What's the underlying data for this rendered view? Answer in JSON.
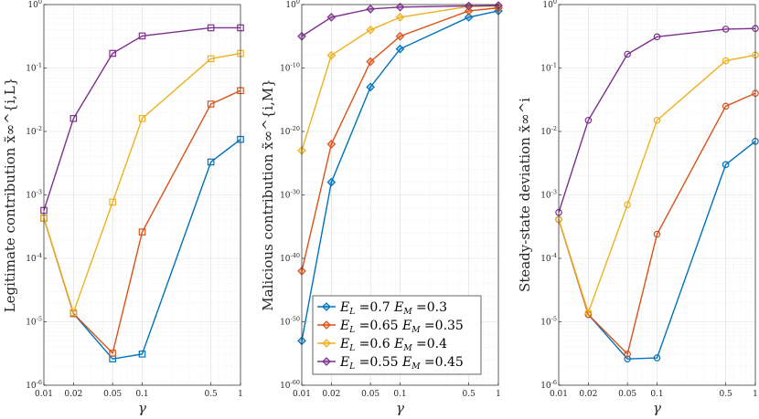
{
  "figure": {
    "series_names": [
      "E_L=0.7 E_M=0.3",
      "E_L=0.65 E_M=0.35",
      "E_L=0.6 E_M=0.4",
      "E_L=0.55 E_M=0.45"
    ],
    "colors": [
      "#0072BD",
      "#D95319",
      "#EDB120",
      "#7E2F8E"
    ],
    "legend": {
      "placement": "bottom-right of middle panel",
      "entries": [
        {
          "E_L": "0.7",
          "E_M": "0.3"
        },
        {
          "E_L": "0.65",
          "E_M": "0.35"
        },
        {
          "E_L": "0.6",
          "E_M": "0.4"
        },
        {
          "E_L": "0.55",
          "E_M": "0.45"
        }
      ]
    }
  },
  "chart_data": [
    {
      "type": "line",
      "panel": "left",
      "marker": "square",
      "title": "",
      "xlabel": "γ",
      "ylabel": "Legitimate contribution x̃∞^{i,L}",
      "xscale": "log",
      "yscale": "log",
      "xlim": [
        0.01,
        1
      ],
      "ylim": [
        1e-06,
        1
      ],
      "xticks": [
        0.01,
        0.02,
        0.05,
        0.1,
        0.5,
        1
      ],
      "xtick_labels": [
        "0.01",
        "0.02",
        "0.05",
        "0.1",
        "0.5",
        "1"
      ],
      "yticks": [
        1e-06,
        1e-05,
        0.0001,
        0.001,
        0.01,
        0.1,
        1
      ],
      "ytick_labels": [
        {
          "base": "10",
          "exp": "-6"
        },
        {
          "base": "10",
          "exp": "-5"
        },
        {
          "base": "10",
          "exp": "-4"
        },
        {
          "base": "10",
          "exp": "-3"
        },
        {
          "base": "10",
          "exp": "-2"
        },
        {
          "base": "10",
          "exp": "-1"
        },
        {
          "base": "10",
          "exp": "0"
        }
      ],
      "x": [
        0.01,
        0.02,
        0.05,
        0.1,
        0.5,
        1
      ],
      "grid": true,
      "series": [
        {
          "name": "E_L=0.7 E_M=0.3",
          "values": [
            0.00043,
            1.35e-05,
            2.6e-06,
            3.1e-06,
            0.0033,
            0.0075
          ]
        },
        {
          "name": "E_L=0.65 E_M=0.35",
          "values": [
            0.00043,
            1.35e-05,
            3.2e-06,
            0.00026,
            0.027,
            0.044
          ]
        },
        {
          "name": "E_L=0.6 E_M=0.4",
          "values": [
            0.00043,
            1.4e-05,
            0.00077,
            0.016,
            0.14,
            0.17
          ]
        },
        {
          "name": "E_L=0.55 E_M=0.45",
          "values": [
            0.00057,
            0.016,
            0.17,
            0.32,
            0.43,
            0.43
          ]
        }
      ]
    },
    {
      "type": "line",
      "panel": "middle",
      "marker": "diamond",
      "title": "",
      "xlabel": "γ",
      "ylabel": "Malicious contribution x̃∞^{i,M}",
      "xscale": "log",
      "yscale": "log",
      "xlim": [
        0.01,
        1
      ],
      "ylim": [
        1e-60,
        1
      ],
      "xticks": [
        0.01,
        0.02,
        0.05,
        0.1,
        0.5,
        1
      ],
      "xtick_labels": [
        "0.01",
        "0.02",
        "0.05",
        "0.1",
        "0.5",
        "1"
      ],
      "yticks": [
        1e-60,
        1e-50,
        1e-40,
        1e-30,
        1e-20,
        1e-10,
        1
      ],
      "ytick_labels": [
        {
          "base": "10",
          "exp": "-60"
        },
        {
          "base": "10",
          "exp": "-50"
        },
        {
          "base": "10",
          "exp": "-40"
        },
        {
          "base": "10",
          "exp": "-30"
        },
        {
          "base": "10",
          "exp": "-20"
        },
        {
          "base": "10",
          "exp": "-10"
        },
        {
          "base": "10",
          "exp": "0"
        }
      ],
      "x": [
        0.01,
        0.02,
        0.05,
        0.1,
        0.5,
        1
      ],
      "grid": true,
      "series": [
        {
          "name": "E_L=0.7 E_M=0.3",
          "values": [
            1e-53,
            1e-28,
            1e-13,
            1e-07,
            0.01,
            0.1
          ]
        },
        {
          "name": "E_L=0.65 E_M=0.35",
          "values": [
            1e-42,
            1e-22,
            1e-09,
            1e-05,
            0.1,
            0.3
          ]
        },
        {
          "name": "E_L=0.6 E_M=0.4",
          "values": [
            1e-23,
            1e-08,
            0.0001,
            0.01,
            0.5,
            0.6
          ]
        },
        {
          "name": "E_L=0.55 E_M=0.45",
          "values": [
            1e-05,
            0.01,
            0.2,
            0.4,
            0.6,
            0.7
          ]
        }
      ]
    },
    {
      "type": "line",
      "panel": "right",
      "marker": "circle",
      "title": "",
      "xlabel": "γ",
      "ylabel": "Steady-state deviation x̃∞^i",
      "xscale": "log",
      "yscale": "log",
      "xlim": [
        0.01,
        1
      ],
      "ylim": [
        1e-06,
        1
      ],
      "xticks": [
        0.01,
        0.02,
        0.05,
        0.1,
        0.5,
        1
      ],
      "xtick_labels": [
        "0.01",
        "0.02",
        "0.05",
        "0.1",
        "0.5",
        "1"
      ],
      "yticks": [
        1e-06,
        1e-05,
        0.0001,
        0.001,
        0.01,
        0.1,
        1
      ],
      "ytick_labels": [
        {
          "base": "10",
          "exp": "-6"
        },
        {
          "base": "10",
          "exp": "-5"
        },
        {
          "base": "10",
          "exp": "-4"
        },
        {
          "base": "10",
          "exp": "-3"
        },
        {
          "base": "10",
          "exp": "-2"
        },
        {
          "base": "10",
          "exp": "-1"
        },
        {
          "base": "10",
          "exp": "0"
        }
      ],
      "x": [
        0.01,
        0.02,
        0.05,
        0.1,
        0.5,
        1
      ],
      "grid": true,
      "series": [
        {
          "name": "E_L=0.7 E_M=0.3",
          "values": [
            0.00041,
            1.3e-05,
            2.6e-06,
            2.7e-06,
            0.003,
            0.007
          ]
        },
        {
          "name": "E_L=0.65 E_M=0.35",
          "values": [
            0.00041,
            1.3e-05,
            3.1e-06,
            0.00024,
            0.025,
            0.04
          ]
        },
        {
          "name": "E_L=0.6 E_M=0.4",
          "values": [
            0.00041,
            1.4e-05,
            0.0007,
            0.015,
            0.13,
            0.16
          ]
        },
        {
          "name": "E_L=0.55 E_M=0.45",
          "values": [
            0.00053,
            0.015,
            0.165,
            0.31,
            0.41,
            0.42
          ]
        }
      ]
    }
  ]
}
